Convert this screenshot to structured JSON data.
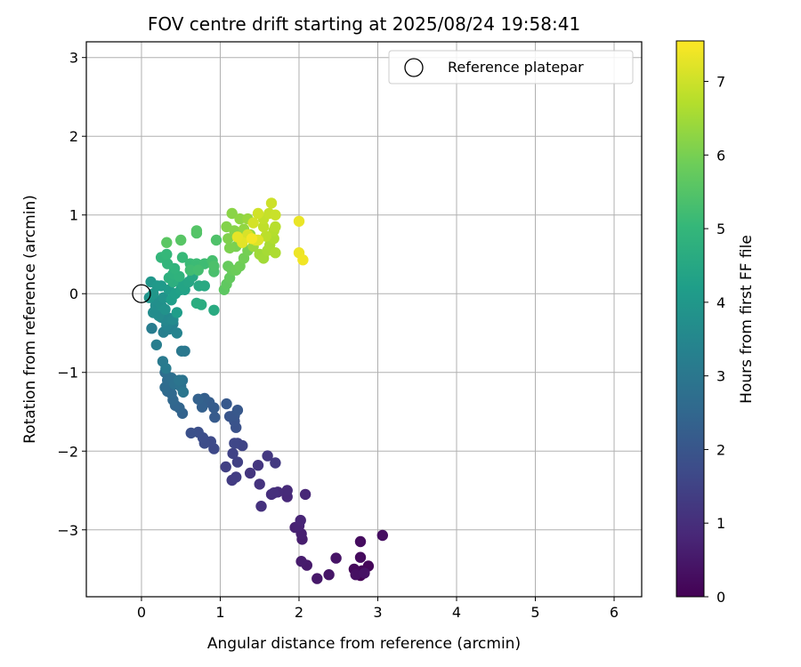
{
  "chart_data": {
    "type": "scatter",
    "title": "FOV centre drift starting at 2025/08/24 19:58:41",
    "xlabel": "Angular distance from reference (arcmin)",
    "ylabel": "Rotation from reference (arcmin)",
    "xlim": [
      -0.7,
      6.35
    ],
    "ylim": [
      -3.85,
      3.2
    ],
    "xticks": [
      0,
      1,
      2,
      3,
      4,
      5,
      6
    ],
    "yticks": [
      -3,
      -2,
      -1,
      0,
      1,
      2,
      3
    ],
    "grid": true,
    "legend": {
      "position": "top-right",
      "entries": [
        "Reference platepar"
      ]
    },
    "colorbar": {
      "label": "Hours from first FF file",
      "colormap": "viridis",
      "range": [
        0,
        7.55
      ],
      "ticks": [
        0,
        1,
        2,
        3,
        4,
        5,
        6,
        7
      ]
    },
    "reference_point": {
      "x": 0,
      "y": 0
    },
    "series": [
      {
        "points": [
          [
            2.78,
            -3.58
          ],
          [
            2.8,
            -3.52
          ],
          [
            2.73,
            -3.55
          ],
          [
            2.88,
            -3.46
          ],
          [
            2.7,
            -3.5
          ],
          [
            2.78,
            -3.35
          ],
          [
            2.78,
            -3.15
          ],
          [
            3.06,
            -3.07
          ],
          [
            2.72,
            -3.57
          ],
          [
            2.83,
            -3.55
          ],
          [
            2.47,
            -3.36
          ],
          [
            2.38,
            -3.57
          ],
          [
            2.23,
            -3.62
          ],
          [
            2.1,
            -3.45
          ],
          [
            2.03,
            -3.4
          ],
          [
            2.04,
            -3.12
          ],
          [
            2.03,
            -3.05
          ],
          [
            1.95,
            -2.97
          ],
          [
            2.0,
            -2.95
          ],
          [
            2.02,
            -2.88
          ],
          [
            2.08,
            -2.55
          ],
          [
            1.85,
            -2.58
          ],
          [
            1.85,
            -2.5
          ],
          [
            1.73,
            -2.52
          ],
          [
            1.65,
            -2.55
          ],
          [
            1.68,
            -2.53
          ],
          [
            1.52,
            -2.7
          ],
          [
            1.5,
            -2.42
          ],
          [
            1.38,
            -2.28
          ],
          [
            1.48,
            -2.18
          ],
          [
            1.6,
            -2.06
          ],
          [
            1.7,
            -2.15
          ],
          [
            1.15,
            -2.37
          ],
          [
            1.2,
            -2.33
          ],
          [
            1.07,
            -2.2
          ],
          [
            1.22,
            -2.14
          ],
          [
            1.16,
            -2.03
          ],
          [
            1.28,
            -1.93
          ],
          [
            1.22,
            -1.9
          ],
          [
            1.18,
            -1.9
          ],
          [
            0.92,
            -1.97
          ],
          [
            0.88,
            -1.88
          ],
          [
            0.8,
            -1.9
          ],
          [
            0.78,
            -1.83
          ],
          [
            0.72,
            -1.76
          ],
          [
            0.63,
            -1.77
          ],
          [
            1.2,
            -1.7
          ],
          [
            1.18,
            -1.62
          ],
          [
            1.12,
            -1.56
          ],
          [
            1.18,
            -1.55
          ],
          [
            1.22,
            -1.48
          ],
          [
            1.08,
            -1.4
          ],
          [
            0.93,
            -1.57
          ],
          [
            0.92,
            -1.45
          ],
          [
            0.86,
            -1.38
          ],
          [
            0.8,
            -1.33
          ],
          [
            0.77,
            -1.44
          ],
          [
            0.72,
            -1.34
          ],
          [
            0.52,
            -1.52
          ],
          [
            0.48,
            -1.45
          ],
          [
            0.43,
            -1.42
          ],
          [
            0.4,
            -1.35
          ],
          [
            0.38,
            -1.27
          ],
          [
            0.33,
            -1.24
          ],
          [
            0.3,
            -1.19
          ],
          [
            0.33,
            -1.1
          ],
          [
            0.3,
            -1.0
          ],
          [
            0.38,
            -1.07
          ],
          [
            0.42,
            -1.15
          ],
          [
            0.5,
            -1.18
          ],
          [
            0.52,
            -1.1
          ],
          [
            0.48,
            -1.1
          ],
          [
            0.53,
            -1.25
          ],
          [
            0.55,
            -0.73
          ],
          [
            0.51,
            -0.73
          ],
          [
            0.27,
            -0.86
          ],
          [
            0.31,
            -0.95
          ],
          [
            0.13,
            -0.44
          ],
          [
            0.19,
            -0.65
          ],
          [
            0.28,
            -0.49
          ],
          [
            0.35,
            -0.45
          ],
          [
            0.4,
            -0.38
          ],
          [
            0.45,
            -0.5
          ],
          [
            0.32,
            -0.4
          ],
          [
            0.25,
            -0.3
          ],
          [
            0.31,
            -0.34
          ],
          [
            0.35,
            -0.31
          ],
          [
            0.4,
            -0.33
          ],
          [
            0.22,
            -0.28
          ],
          [
            0.15,
            -0.24
          ],
          [
            0.18,
            -0.15
          ],
          [
            0.21,
            -0.1
          ],
          [
            0.25,
            -0.15
          ],
          [
            0.3,
            -0.2
          ],
          [
            0.28,
            -0.05
          ],
          [
            0.1,
            -0.05
          ],
          [
            0.15,
            0.0
          ],
          [
            0.12,
            0.15
          ],
          [
            0.2,
            0.1
          ],
          [
            0.25,
            0.1
          ],
          [
            0.35,
            0.05
          ],
          [
            0.45,
            -0.24
          ],
          [
            0.38,
            -0.08
          ],
          [
            0.43,
            0.0
          ],
          [
            0.5,
            0.05
          ],
          [
            0.55,
            0.05
          ],
          [
            0.48,
            0.15
          ],
          [
            0.53,
            0.1
          ],
          [
            0.6,
            0.15
          ],
          [
            0.65,
            0.22
          ],
          [
            0.73,
            0.1
          ],
          [
            0.8,
            0.1
          ],
          [
            0.92,
            -0.21
          ],
          [
            0.76,
            -0.14
          ],
          [
            0.7,
            -0.12
          ],
          [
            0.4,
            0.15
          ],
          [
            0.35,
            0.2
          ],
          [
            0.4,
            0.25
          ],
          [
            0.48,
            0.22
          ],
          [
            0.42,
            0.32
          ],
          [
            0.33,
            0.38
          ],
          [
            0.25,
            0.46
          ],
          [
            0.32,
            0.5
          ],
          [
            0.52,
            0.46
          ],
          [
            0.62,
            0.38
          ],
          [
            0.7,
            0.38
          ],
          [
            0.8,
            0.38
          ],
          [
            0.62,
            0.3
          ],
          [
            0.72,
            0.3
          ],
          [
            0.9,
            0.42
          ],
          [
            0.92,
            0.28
          ],
          [
            0.92,
            0.35
          ],
          [
            0.95,
            0.68
          ],
          [
            0.7,
            0.77
          ],
          [
            0.7,
            0.8
          ],
          [
            0.5,
            0.68
          ],
          [
            0.32,
            0.65
          ],
          [
            1.05,
            0.05
          ],
          [
            1.08,
            0.12
          ],
          [
            1.12,
            0.2
          ],
          [
            1.1,
            0.35
          ],
          [
            1.15,
            0.3
          ],
          [
            1.2,
            0.3
          ],
          [
            1.25,
            0.35
          ],
          [
            1.3,
            0.45
          ],
          [
            1.35,
            0.55
          ],
          [
            1.2,
            0.6
          ],
          [
            1.12,
            0.58
          ],
          [
            1.1,
            0.7
          ],
          [
            1.08,
            0.85
          ],
          [
            1.18,
            0.8
          ],
          [
            1.15,
            1.02
          ],
          [
            1.25,
            0.95
          ],
          [
            1.3,
            0.82
          ],
          [
            1.38,
            0.75
          ],
          [
            1.35,
            0.95
          ],
          [
            1.42,
            0.6
          ],
          [
            1.5,
            0.5
          ],
          [
            1.55,
            0.45
          ],
          [
            1.6,
            0.55
          ],
          [
            1.63,
            0.62
          ],
          [
            1.7,
            0.52
          ],
          [
            1.68,
            0.7
          ],
          [
            1.68,
            0.8
          ],
          [
            1.7,
            0.85
          ],
          [
            1.58,
            0.73
          ],
          [
            1.55,
            0.85
          ],
          [
            1.55,
            0.95
          ],
          [
            1.62,
            1.02
          ],
          [
            1.7,
            1.0
          ],
          [
            1.65,
            1.15
          ],
          [
            1.48,
            1.02
          ],
          [
            1.42,
            0.9
          ],
          [
            1.35,
            0.75
          ],
          [
            1.45,
            0.68
          ],
          [
            1.48,
            0.68
          ],
          [
            1.28,
            0.65
          ],
          [
            1.22,
            0.72
          ],
          [
            2.0,
            0.92
          ],
          [
            2.0,
            0.52
          ],
          [
            2.05,
            0.43
          ],
          [
            1.4,
            0.7
          ]
        ]
      }
    ]
  }
}
